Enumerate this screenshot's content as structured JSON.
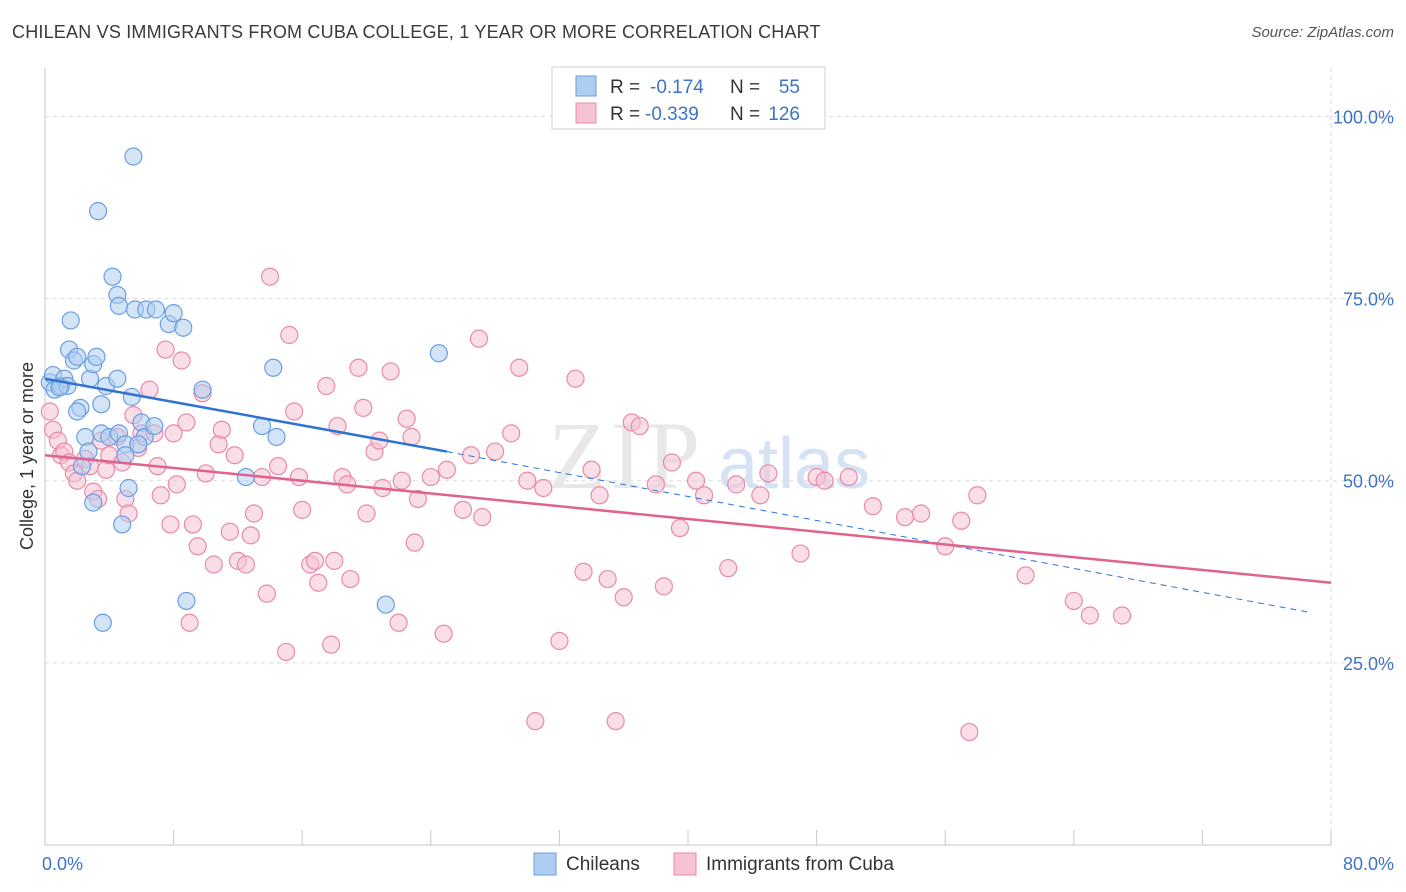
{
  "title": "CHILEAN VS IMMIGRANTS FROM CUBA COLLEGE, 1 YEAR OR MORE CORRELATION CHART",
  "source": "Source: ZipAtlas.com",
  "watermark": {
    "zip": "ZIP",
    "atlas": "atlas"
  },
  "colors": {
    "blue_fill": "#aecdf0",
    "blue_stroke": "#6b9ee0",
    "blue_line": "#2f72d0",
    "pink_fill": "#f6c3d3",
    "pink_stroke": "#e88aa8",
    "pink_line": "#e0628e",
    "grid": "#d9d9d9",
    "tick_label": "#3e74c7"
  },
  "chart_data": {
    "type": "scatter",
    "title": "CHILEAN VS IMMIGRANTS FROM CUBA COLLEGE, 1 YEAR OR MORE CORRELATION CHART",
    "xlabel": "",
    "ylabel": "College, 1 year or more",
    "xlim": [
      0,
      80
    ],
    "ylim": [
      0,
      105
    ],
    "x_tick_labels": [
      "0.0%",
      "80.0%"
    ],
    "y_ticks": [
      25,
      50,
      75,
      100
    ],
    "y_tick_labels": [
      "25.0%",
      "50.0%",
      "75.0%",
      "100.0%"
    ],
    "grid": true,
    "legend_top": [
      {
        "r_label": "R =",
        "r_value": "-0.174",
        "n_label": "N =",
        "n_value": "55"
      },
      {
        "r_label": "R =",
        "r_value": "-0.339",
        "n_label": "N =",
        "n_value": "126"
      }
    ],
    "series": [
      {
        "name": "Chileans",
        "color": "#aecdf0",
        "trend": {
          "x0": 0,
          "y0": 64.0,
          "x1": 25,
          "y1": 54.0,
          "dashed_to_x": 80,
          "dashed_to_y": 32.0
        },
        "points": [
          [
            0.3,
            63.5
          ],
          [
            0.5,
            64.5
          ],
          [
            0.6,
            62.5
          ],
          [
            1.0,
            63.0
          ],
          [
            1.2,
            64.0
          ],
          [
            1.5,
            68.0
          ],
          [
            1.6,
            72.0
          ],
          [
            1.8,
            66.5
          ],
          [
            2.0,
            67.0
          ],
          [
            2.2,
            60.0
          ],
          [
            2.3,
            52.0
          ],
          [
            2.5,
            56.0
          ],
          [
            2.8,
            64.0
          ],
          [
            3.0,
            66.0
          ],
          [
            3.2,
            67.0
          ],
          [
            2.7,
            54.0
          ],
          [
            3.5,
            56.5
          ],
          [
            3.0,
            47.0
          ],
          [
            3.5,
            60.5
          ],
          [
            3.3,
            87.0
          ],
          [
            3.8,
            63.0
          ],
          [
            4.0,
            56.0
          ],
          [
            4.2,
            78.0
          ],
          [
            4.5,
            64.0
          ],
          [
            4.6,
            56.5
          ],
          [
            4.8,
            44.0
          ],
          [
            5.0,
            55.0
          ],
          [
            4.5,
            75.5
          ],
          [
            4.6,
            74.0
          ],
          [
            5.0,
            53.5
          ],
          [
            5.2,
            49.0
          ],
          [
            5.4,
            61.5
          ],
          [
            5.6,
            73.5
          ],
          [
            5.5,
            94.5
          ],
          [
            6.0,
            58.0
          ],
          [
            6.2,
            56.0
          ],
          [
            6.3,
            73.5
          ],
          [
            6.8,
            57.5
          ],
          [
            6.9,
            73.5
          ],
          [
            7.7,
            71.5
          ],
          [
            8.0,
            73.0
          ],
          [
            8.6,
            71.0
          ],
          [
            8.8,
            33.5
          ],
          [
            9.8,
            62.5
          ],
          [
            12.5,
            50.5
          ],
          [
            13.5,
            57.5
          ],
          [
            14.2,
            65.5
          ],
          [
            14.4,
            56.0
          ],
          [
            21.2,
            33.0
          ],
          [
            24.5,
            67.5
          ],
          [
            3.6,
            30.5
          ],
          [
            2.0,
            59.5
          ],
          [
            1.4,
            63.0
          ],
          [
            0.9,
            62.8
          ],
          [
            5.8,
            55.0
          ]
        ]
      },
      {
        "name": "Immigrants from Cuba",
        "color": "#f6c3d3",
        "trend": {
          "x0": 0,
          "y0": 53.5,
          "x1": 80,
          "y1": 36.0
        },
        "points": [
          [
            0.3,
            59.5
          ],
          [
            0.5,
            57.0
          ],
          [
            0.8,
            55.5
          ],
          [
            1.0,
            53.5
          ],
          [
            1.2,
            54.0
          ],
          [
            1.5,
            52.5
          ],
          [
            1.8,
            51.0
          ],
          [
            2.0,
            50.0
          ],
          [
            2.5,
            53.0
          ],
          [
            2.8,
            52.0
          ],
          [
            3.0,
            48.5
          ],
          [
            3.3,
            47.5
          ],
          [
            3.5,
            55.5
          ],
          [
            3.8,
            51.5
          ],
          [
            4.0,
            53.5
          ],
          [
            4.5,
            56.0
          ],
          [
            4.8,
            52.5
          ],
          [
            5.0,
            47.5
          ],
          [
            5.2,
            45.5
          ],
          [
            5.5,
            59.0
          ],
          [
            5.8,
            54.5
          ],
          [
            6.0,
            56.5
          ],
          [
            6.5,
            62.5
          ],
          [
            6.8,
            56.5
          ],
          [
            7.0,
            52.0
          ],
          [
            7.2,
            48.0
          ],
          [
            7.5,
            68.0
          ],
          [
            7.8,
            44.0
          ],
          [
            8.0,
            56.5
          ],
          [
            8.2,
            49.5
          ],
          [
            8.5,
            66.5
          ],
          [
            8.8,
            58.0
          ],
          [
            9.0,
            30.5
          ],
          [
            9.2,
            44.0
          ],
          [
            9.5,
            41.0
          ],
          [
            9.8,
            62.0
          ],
          [
            10.0,
            51.0
          ],
          [
            10.5,
            38.5
          ],
          [
            10.8,
            55.0
          ],
          [
            11.0,
            57.0
          ],
          [
            11.5,
            43.0
          ],
          [
            11.8,
            53.5
          ],
          [
            12.0,
            39.0
          ],
          [
            12.5,
            38.5
          ],
          [
            12.8,
            42.5
          ],
          [
            13.0,
            45.5
          ],
          [
            13.5,
            50.5
          ],
          [
            13.8,
            34.5
          ],
          [
            14.0,
            78.0
          ],
          [
            14.5,
            52.0
          ],
          [
            15.0,
            26.5
          ],
          [
            15.2,
            70.0
          ],
          [
            15.5,
            59.5
          ],
          [
            15.8,
            50.5
          ],
          [
            16.0,
            46.0
          ],
          [
            16.5,
            38.5
          ],
          [
            16.8,
            39.0
          ],
          [
            17.0,
            36.0
          ],
          [
            17.5,
            63.0
          ],
          [
            17.8,
            27.5
          ],
          [
            18.0,
            39.0
          ],
          [
            18.2,
            57.5
          ],
          [
            18.5,
            50.5
          ],
          [
            18.8,
            49.5
          ],
          [
            19.0,
            36.5
          ],
          [
            19.5,
            65.5
          ],
          [
            19.8,
            60.0
          ],
          [
            20.0,
            45.5
          ],
          [
            20.5,
            54.0
          ],
          [
            20.8,
            55.5
          ],
          [
            21.0,
            49.0
          ],
          [
            21.5,
            65.0
          ],
          [
            22.0,
            30.5
          ],
          [
            22.2,
            50.0
          ],
          [
            22.5,
            58.5
          ],
          [
            22.8,
            56.0
          ],
          [
            23.0,
            41.5
          ],
          [
            23.2,
            47.5
          ],
          [
            24.0,
            50.5
          ],
          [
            24.8,
            29.0
          ],
          [
            25.0,
            51.5
          ],
          [
            26.0,
            46.0
          ],
          [
            26.5,
            53.5
          ],
          [
            27.0,
            69.5
          ],
          [
            27.2,
            45.0
          ],
          [
            28.0,
            54.0
          ],
          [
            29.0,
            56.5
          ],
          [
            29.5,
            65.5
          ],
          [
            30.0,
            50.0
          ],
          [
            30.5,
            17.0
          ],
          [
            31.0,
            49.0
          ],
          [
            32.0,
            28.0
          ],
          [
            33.0,
            64.0
          ],
          [
            33.5,
            37.5
          ],
          [
            34.0,
            51.5
          ],
          [
            34.5,
            48.0
          ],
          [
            35.0,
            36.5
          ],
          [
            35.5,
            17.0
          ],
          [
            36.0,
            34.0
          ],
          [
            36.5,
            58.0
          ],
          [
            37.0,
            57.5
          ],
          [
            38.0,
            49.5
          ],
          [
            38.5,
            35.5
          ],
          [
            39.0,
            52.5
          ],
          [
            39.5,
            43.5
          ],
          [
            40.5,
            50.0
          ],
          [
            41.0,
            48.0
          ],
          [
            42.5,
            38.0
          ],
          [
            43.0,
            49.5
          ],
          [
            44.5,
            48.0
          ],
          [
            45.0,
            51.0
          ],
          [
            47.0,
            40.0
          ],
          [
            48.0,
            50.5
          ],
          [
            48.5,
            50.0
          ],
          [
            50.0,
            50.5
          ],
          [
            51.5,
            46.5
          ],
          [
            53.5,
            45.0
          ],
          [
            54.5,
            45.5
          ],
          [
            56.0,
            41.0
          ],
          [
            57.0,
            44.5
          ],
          [
            57.5,
            15.5
          ],
          [
            58.0,
            48.0
          ],
          [
            61.0,
            37.0
          ],
          [
            64.0,
            33.5
          ],
          [
            65.0,
            31.5
          ],
          [
            67.0,
            31.5
          ]
        ]
      }
    ]
  },
  "legend_bottom": [
    {
      "label": "Chileans"
    },
    {
      "label": "Immigrants from Cuba"
    }
  ]
}
